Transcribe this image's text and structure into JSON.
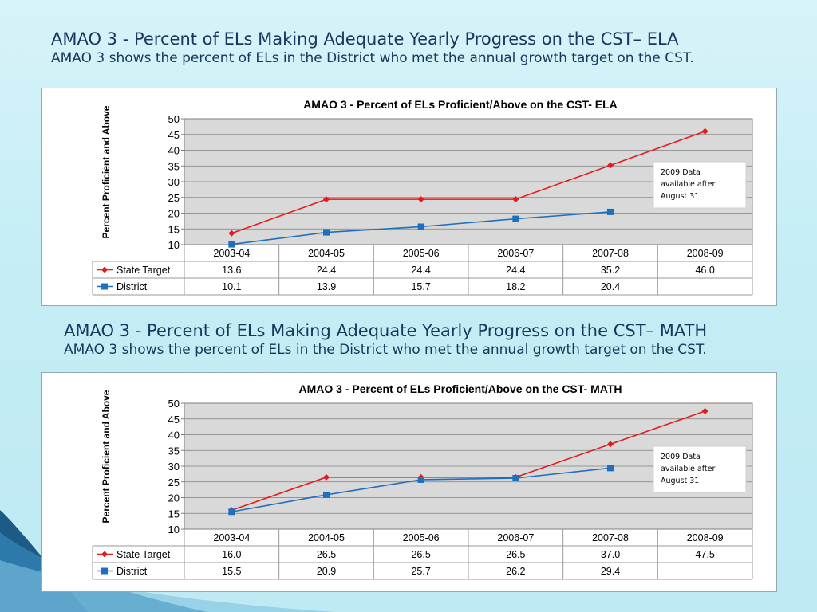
{
  "slide": {
    "ela_heading": "AMAO 3 - Percent of ELs Making Adequate Yearly Progress on the CST– ELA",
    "ela_subheading": "AMAO 3 shows the percent of ELs in the District who met the annual growth target on the CST.",
    "math_heading": "AMAO 3 - Percent of ELs Making Adequate Yearly Progress on the CST– MATH",
    "math_subheading": "AMAO 3 shows the percent of ELs in the District who met the annual growth target on the CST.",
    "colors": {
      "accent_text": "#17375e",
      "state_target": "#e31a1c",
      "district": "#1f6fbf",
      "plot_bg": "#d9d9d9"
    }
  },
  "chart_data": [
    {
      "type": "line",
      "title": "AMAO 3 - Percent of ELs Proficient/Above on the CST- ELA",
      "xlabel": "",
      "ylabel": "Percent Proficient and Above",
      "ylim": [
        10,
        50
      ],
      "yticks": [
        "10",
        "15",
        "20",
        "25",
        "30",
        "35",
        "40",
        "45",
        "50"
      ],
      "grid": true,
      "legend": "data-table",
      "categories": [
        "2003-04",
        "2004-05",
        "2005-06",
        "2006-07",
        "2007-08",
        "2008-09"
      ],
      "series": [
        {
          "name": "State Target",
          "values": [
            13.6,
            24.4,
            24.4,
            24.4,
            35.2,
            46.0
          ],
          "labels": [
            "13.6",
            "24.4",
            "24.4",
            "24.4",
            "35.2",
            "46.0"
          ],
          "marker": "diamond"
        },
        {
          "name": "District",
          "values": [
            10.1,
            13.9,
            15.7,
            18.2,
            20.4,
            null
          ],
          "labels": [
            "10.1",
            "13.9",
            "15.7",
            "18.2",
            "20.4",
            ""
          ],
          "marker": "square"
        }
      ],
      "annotation": [
        "2009 Data",
        "available after",
        "August 31"
      ]
    },
    {
      "type": "line",
      "title": "AMAO 3 - Percent of ELs Proficient/Above on the CST- MATH",
      "xlabel": "",
      "ylabel": "Percent Proficient and Above",
      "ylim": [
        10,
        50
      ],
      "yticks": [
        "10",
        "15",
        "20",
        "25",
        "30",
        "35",
        "40",
        "45",
        "50"
      ],
      "grid": true,
      "legend": "data-table",
      "categories": [
        "2003-04",
        "2004-05",
        "2005-06",
        "2006-07",
        "2007-08",
        "2008-09"
      ],
      "series": [
        {
          "name": "State Target",
          "values": [
            16.0,
            26.5,
            26.5,
            26.5,
            37.0,
            47.5
          ],
          "labels": [
            "16.0",
            "26.5",
            "26.5",
            "26.5",
            "37.0",
            "47.5"
          ],
          "marker": "diamond"
        },
        {
          "name": "District",
          "values": [
            15.5,
            20.9,
            25.7,
            26.2,
            29.4,
            null
          ],
          "labels": [
            "15.5",
            "20.9",
            "25.7",
            "26.2",
            "29.4",
            ""
          ],
          "marker": "square"
        }
      ],
      "annotation": [
        "2009 Data",
        "available after",
        "August 31"
      ]
    }
  ]
}
